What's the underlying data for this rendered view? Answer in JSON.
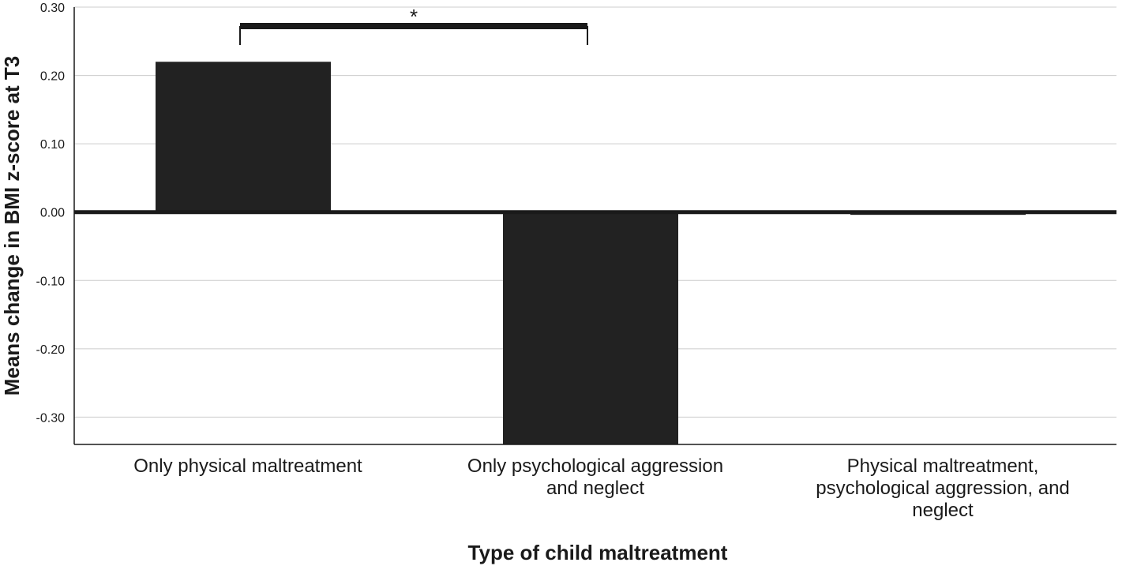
{
  "chart_data": {
    "type": "bar",
    "categories": [
      [
        "Only physical maltreatment"
      ],
      [
        "Only psychological aggression",
        "and neglect"
      ],
      [
        "Physical maltreatment,",
        "psychological aggression, and",
        "neglect"
      ]
    ],
    "values": [
      0.22,
      -0.34,
      -0.004
    ],
    "xlabel": "Type of child maltreatment",
    "ylabel": "Means change in BMI z-score at T3",
    "ylim": [
      -0.34,
      0.3
    ],
    "yticks": [
      0.3,
      0.2,
      0.1,
      0.0,
      -0.1,
      -0.2,
      -0.3
    ],
    "ytick_labels": [
      "0.30",
      "0.20",
      "0.10",
      "0.00",
      "-0.10",
      "-0.20",
      "-0.30"
    ],
    "grid": true,
    "significance": {
      "between": [
        0,
        1
      ],
      "label": "*"
    },
    "colors": {
      "bar": "#222222",
      "grid": "#cccccc",
      "axis": "#1a1a1a"
    }
  }
}
